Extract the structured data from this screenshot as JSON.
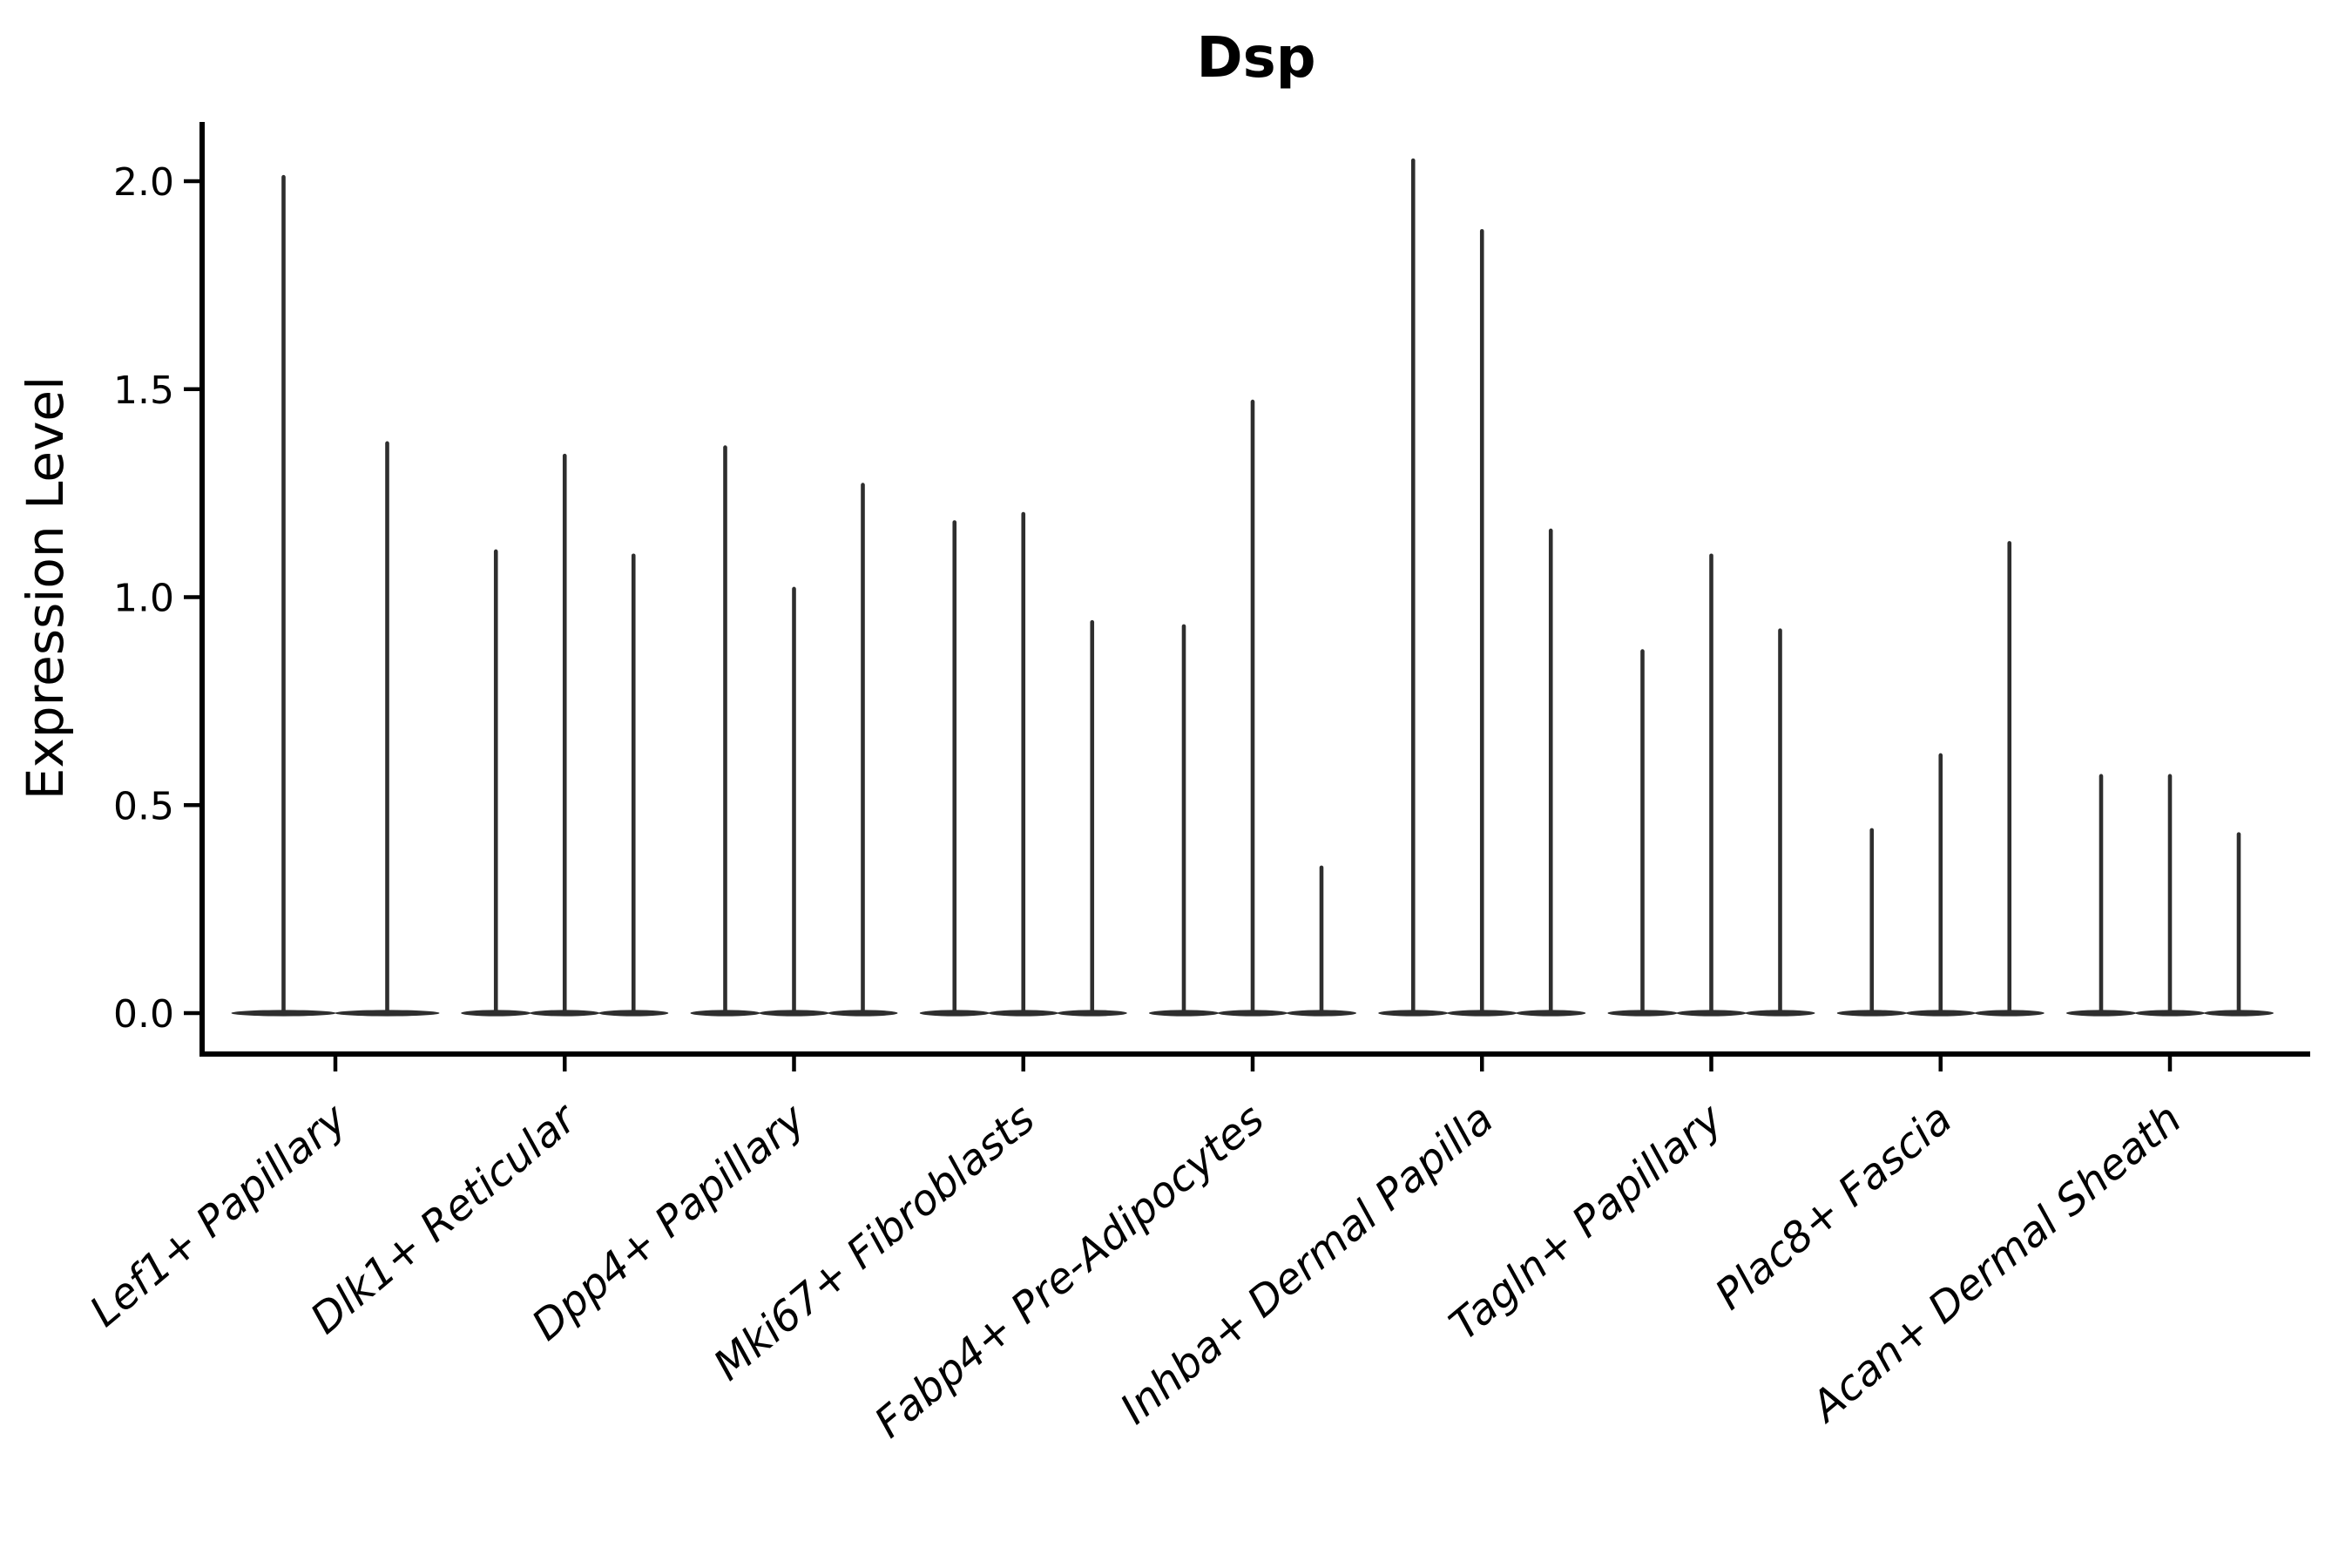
{
  "chart_data": {
    "type": "violin",
    "title": "Dsp",
    "ylabel": "Expression Level",
    "xlabel": "",
    "categories": [
      "Lef1+ Papillary",
      "Dlk1+ Reticular",
      "Dpp4+ Papillary",
      "Mki67+ Fibroblasts",
      "Fabp4+ Pre-Adipocytes",
      "Inhba+ Dermal Papilla",
      "Tagln+ Papillary",
      "Plac8+ Fascia",
      "Acan+ Dermal Sheath"
    ],
    "series": [
      {
        "category": "Lef1+ Papillary",
        "violin_max_values": [
          2.01,
          1.37
        ]
      },
      {
        "category": "Dlk1+ Reticular",
        "violin_max_values": [
          1.11,
          1.34,
          1.1
        ]
      },
      {
        "category": "Dpp4+ Papillary",
        "violin_max_values": [
          1.36,
          1.02,
          1.27
        ]
      },
      {
        "category": "Mki67+ Fibroblasts",
        "violin_max_values": [
          1.18,
          1.2,
          0.94
        ]
      },
      {
        "category": "Fabp4+ Pre-Adipocytes",
        "violin_max_values": [
          0.93,
          1.47,
          0.35
        ]
      },
      {
        "category": "Inhba+ Dermal Papilla",
        "violin_max_values": [
          2.05,
          1.88,
          1.16
        ]
      },
      {
        "category": "Tagln+ Papillary",
        "violin_max_values": [
          0.87,
          1.1,
          0.92
        ]
      },
      {
        "category": "Plac8+ Fascia",
        "violin_max_values": [
          0.44,
          0.62,
          1.13
        ]
      },
      {
        "category": "Acan+ Dermal Sheath",
        "violin_max_values": [
          0.57,
          0.57,
          0.43
        ]
      }
    ],
    "violin_shape_note": "extremely thin violins: flat lens-shaped body at 0 with a single thin spike up to the max value",
    "yticks": [
      0.0,
      0.5,
      1.0,
      1.5,
      2.0
    ],
    "ytick_labels": [
      "0.0",
      "0.5",
      "1.0",
      "1.5",
      "2.0"
    ],
    "ylim": [
      -0.11,
      2.15
    ],
    "grid": false,
    "legend": "none",
    "x_tick_rotation_deg": 40,
    "colors": {
      "violin": "#2e2e2e",
      "axes": "#000000",
      "background": "#ffffff"
    }
  }
}
